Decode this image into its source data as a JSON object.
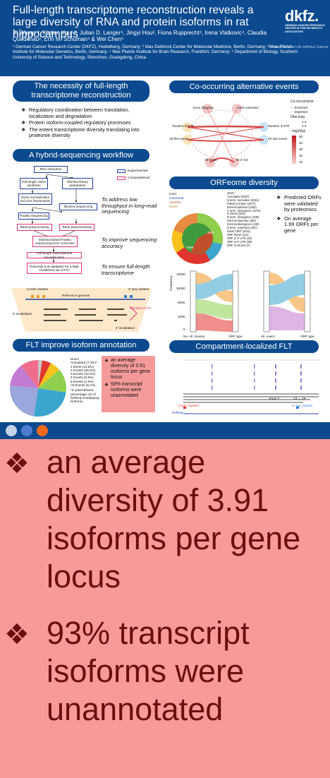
{
  "header": {
    "title": "Full-length transcriptome reconstruction reveals a large diversity of RNA and protein isoforms in rat hippocampus",
    "authors": "Xi Wang¹˒², Xintian You²˒³, Julian D. Langer⁴, Jingyi Hou², Fiona Rupprecht⁴, Irena Vlatkovic⁴, Claudia Quedenau², Erin M. Schuman⁴ & Wei Chen⁵",
    "affiliations": "¹ German Cancer Research Center (DKFZ), Heidelberg, Germany; ² Max Delbrück Center for Molecular Medicine, Berlin, Germany; ³ Max Planck Institute for Molecular Genetics, Berlin, Germany; ⁴ Max Planck Institute for Brain Research, Frankfurt, Germany; ⁵ Department of Biology, Southern University of Science and Technology, Shenzhen, Guangdong, China",
    "logo_word": "dkfz.",
    "logo_sub": "GERMAN CANCER RESEARCH CENTER IN THE HELMHOLTZ ASSOCIATION",
    "logo_tag": "Research for a Life without Cancer",
    "brand_color": "#0b4a8f"
  },
  "sections": {
    "necessity": {
      "title": "The necessity of full-length transcriptome reconstruction",
      "bullets": [
        "Regulatory coordination between translation, localization and degradation",
        "Protein isoform-coupled regulatory processes",
        "The extent transcriptome diversity translating into proteome diversity"
      ]
    },
    "workflow": {
      "title": "A hybrid-sequencing workflow",
      "legend_experimental": "Experimental",
      "legend_computational": "Computational",
      "steps": {
        "rna": "RNA extraction",
        "cdna": "Full-length cDNA synthesis",
        "illumina_prep": "Illumina library preparation",
        "norm": "cDNA normalization and size fractionation",
        "illumina_seq": "Illumina sequencing",
        "pacbio": "PacBio sequencing",
        "read_pre1": "Read preprocessing",
        "read_pre2": "Read preprocessing",
        "err": "Illumina-based PacBio sequencing error correction",
        "flt": "Full-length transcriptome reconstruction",
        "validation": "Transcript end validation for a high-confidence set of FLT"
      },
      "notes": [
        "To address low throughput in long-read sequencing",
        "To improve sequencing accuracy",
        "To ensure full-length transcriptome"
      ],
      "cage_label": "CAGE clusters",
      "seq_label": "3' seq clusters",
      "ref_label": "Reference genome",
      "inval5": "5' invalidated",
      "inval3": "3' invalidated",
      "validated": "Validated FLTs"
    },
    "flt_annotation": {
      "title": "FLT improve isoform annotation",
      "legend": [
        "Novel",
        "Annotated (7.4%)*",
        "1 Event (31.5%)",
        "2 Events (36.6%)",
        "3 Events (16.0%)",
        "4 Events (8.9%)",
        "5 Events (2.9%)",
        ">5 Events (5.1%)"
      ],
      "footnote": "*In parentheses: percentage out of RefSeq-overlapping isoforms",
      "bullets": [
        "an average diversity of 3.91 isoforms per gene locus",
        "93% transcript isoforms were unannotated"
      ]
    },
    "cooccurring": {
      "title": "Co-occurring alternative events",
      "labels": [
        "Exon skipping",
        "Intron retention",
        "Tandem 5'UTR",
        "Tandem 3'UTR",
        "Alt first exons",
        "Alt last exons",
        "Alt 5'-SS",
        "Alt 3'-SS"
      ],
      "legend_title": "Co-occurrence",
      "enriched": "Enriched",
      "depleted": "Depleted",
      "obs_exp": "Obs./exp.",
      "obs_vals": [
        "1.4",
        "2.0"
      ],
      "scale_title": "−log10(p)",
      "scale_ticks": [
        "50",
        "40",
        "30",
        "20",
        "10"
      ]
    },
    "orfeome": {
      "title": "ORFeome diversity",
      "inner_title": "Inner",
      "inner": [
        "Canonical",
        "Variants",
        "Novel"
      ],
      "outer_title": "Outer",
      "outer": [
        "Annotated (3847)",
        "N term. truncation (2061)",
        "Partial in frame (1577)",
        "Internal deletion (1183)",
        "C term. divergence (1073)",
        "In frame (916)",
        "N term. divergence (435)",
        "Internal insertion (460)",
        "Internal divergence (340)",
        "N term. extension (287)",
        "Novel ORF (1021)",
        "ORF frame (114)",
        "ORF in 3' UTR (33)",
        "ORF in 5' UTR (38)",
        "ORF in introns (7)"
      ],
      "inner_value": "3847",
      "novel_value": "7698",
      "bullets": [
        "Predicted ORFs were validated by proteomics",
        "On average 1.99 ORFs per gene"
      ],
      "ylabel": "Frequency",
      "x_left": [
        "No. Alt. Events",
        "ORF type"
      ],
      "x_right": [
        "Alt. event",
        "ORF type"
      ],
      "yticks": [
        "0",
        "1000",
        "5000",
        "10000",
        "15000"
      ]
    },
    "compartment": {
      "title": "Compartment-localized FLT",
      "cage_label": "CAGE clusters",
      "seq_label": "3' seq clusters",
      "refseq": "RefSeq",
      "exon_label": "Exon 7",
      "exon_label2": "13 → 16"
    }
  },
  "zoom": {
    "bullets": [
      "an average diversity of 3.91 isoforms per gene locus",
      "93% transcript isoforms were unannotated"
    ],
    "bg": "#f79a9a",
    "text_color": "#6a0e0e"
  },
  "footer": {
    "dot_colors": [
      "#c7d3e6",
      "#4f7bd1",
      "#f26b1d"
    ]
  }
}
